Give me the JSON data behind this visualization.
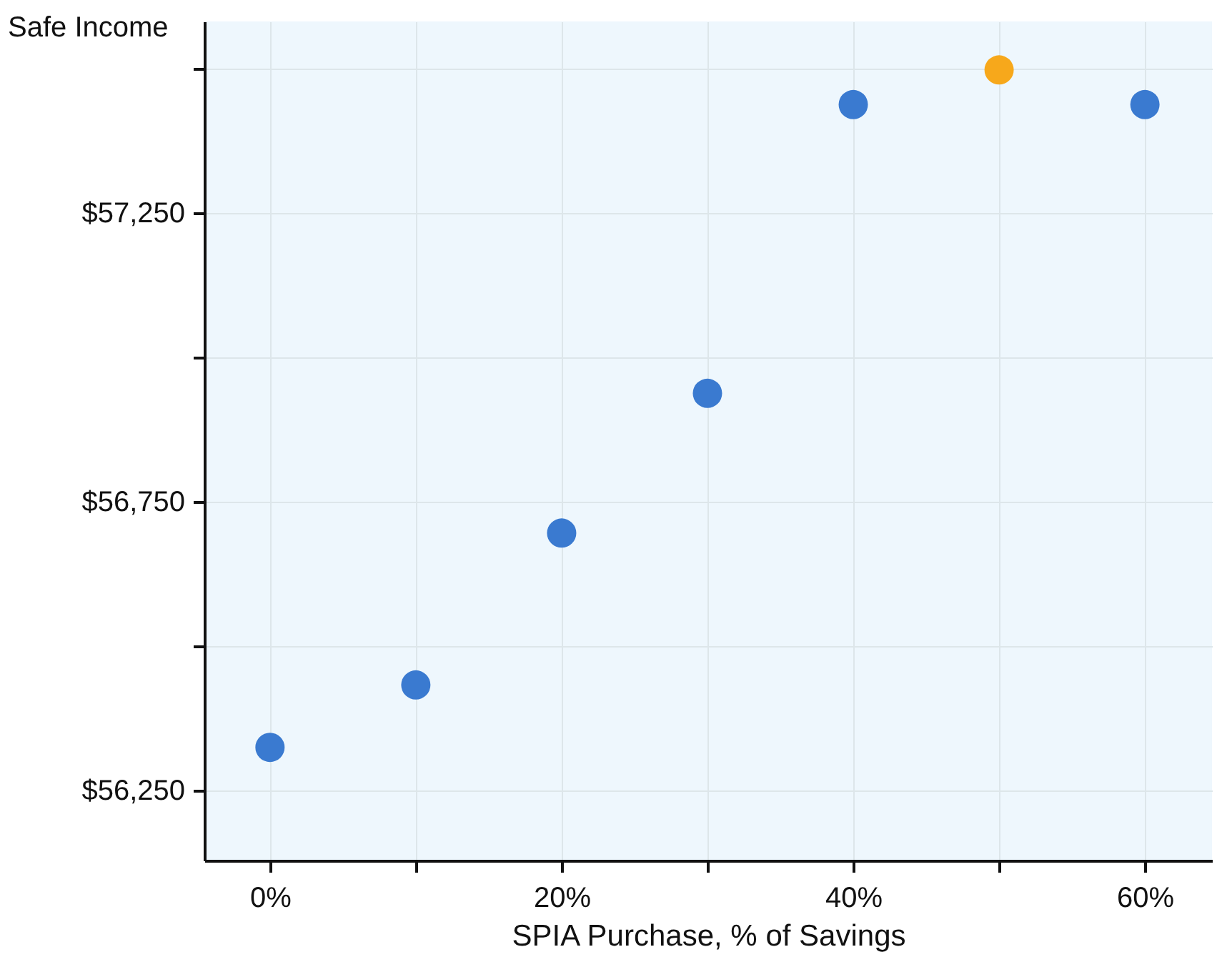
{
  "chart_data": {
    "type": "scatter",
    "xlabel": "SPIA Purchase, % of Savings",
    "ylabel": "Safe Income",
    "x": [
      0,
      10,
      20,
      30,
      40,
      50,
      60
    ],
    "series": [
      {
        "values": [
          56325,
          56433,
          56696,
          56938,
          57438,
          57498,
          57438
        ],
        "colors": [
          "#3a7ad0",
          "#3a7ad0",
          "#3a7ad0",
          "#3a7ad0",
          "#3a7ad0",
          "#f7a81b",
          "#3a7ad0"
        ]
      }
    ],
    "xlim": [
      -4.5,
      64.6
    ],
    "ylim": [
      56129,
      57582
    ],
    "xticks": [
      {
        "value": 0,
        "label": "0%"
      },
      {
        "value": 10,
        "label": null
      },
      {
        "value": 20,
        "label": "20%"
      },
      {
        "value": 30,
        "label": null
      },
      {
        "value": 40,
        "label": "40%"
      },
      {
        "value": 50,
        "label": null
      },
      {
        "value": 60,
        "label": "60%"
      }
    ],
    "yticks": [
      {
        "value": 56250,
        "label": "$56,250"
      },
      {
        "value": 56500,
        "label": null
      },
      {
        "value": 56750,
        "label": "$56,750"
      },
      {
        "value": 57000,
        "label": null
      },
      {
        "value": 57250,
        "label": "$57,250"
      },
      {
        "value": 57500,
        "label": null
      }
    ],
    "grid": true,
    "marker": "circle"
  }
}
